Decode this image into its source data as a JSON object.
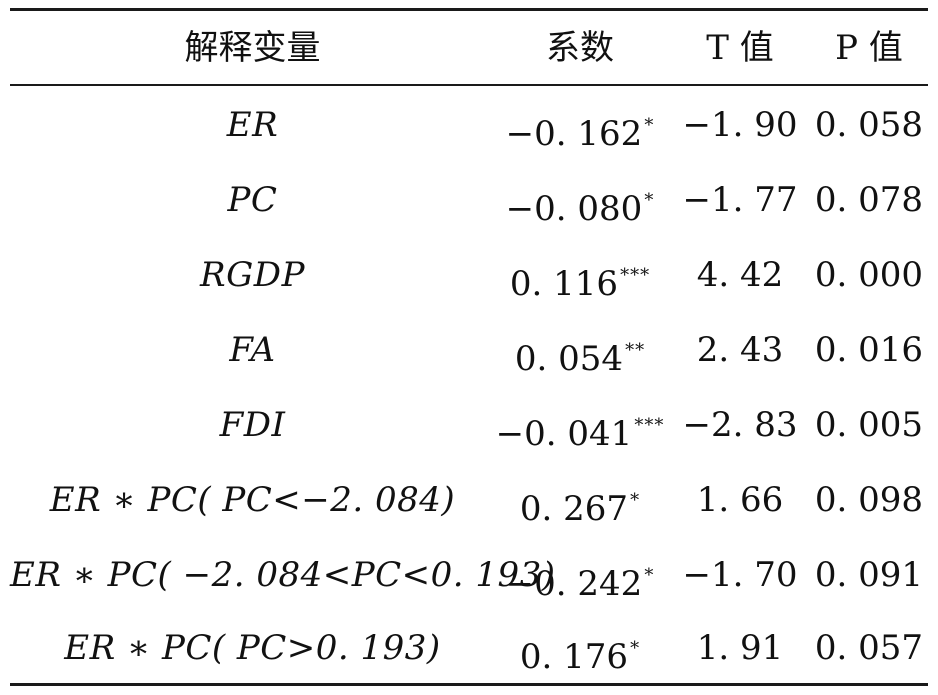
{
  "table": {
    "headers": {
      "variable": "解释变量",
      "coef": "系数",
      "t": "T 值",
      "p": "P 值"
    },
    "rows": [
      {
        "variable": "ER",
        "coef": "−0. 162",
        "stars": "*",
        "t": "−1. 90",
        "p": "0. 058"
      },
      {
        "variable": "PC",
        "coef": "−0. 080",
        "stars": "*",
        "t": "−1. 77",
        "p": "0. 078"
      },
      {
        "variable": "RGDP",
        "coef": "0. 116",
        "stars": "***",
        "t": "4. 42",
        "p": "0. 000"
      },
      {
        "variable": "FA",
        "coef": "0. 054",
        "stars": "**",
        "t": "2. 43",
        "p": "0. 016"
      },
      {
        "variable": "FDI",
        "coef": "−0. 041",
        "stars": "***",
        "t": "−2. 83",
        "p": "0. 005"
      },
      {
        "variable": "ER ∗ PC( PC<−2. 084)",
        "coef": "0. 267",
        "stars": "*",
        "t": "1. 66",
        "p": "0. 098"
      },
      {
        "variable": "ER ∗ PC( −2. 084<PC<0. 193)",
        "coef": "−0. 242",
        "stars": "*",
        "t": "−1. 70",
        "p": "0. 091"
      },
      {
        "variable": "ER ∗ PC( PC>0. 193)",
        "coef": "0. 176",
        "stars": "*",
        "t": "1. 91",
        "p": "0. 057"
      }
    ]
  }
}
